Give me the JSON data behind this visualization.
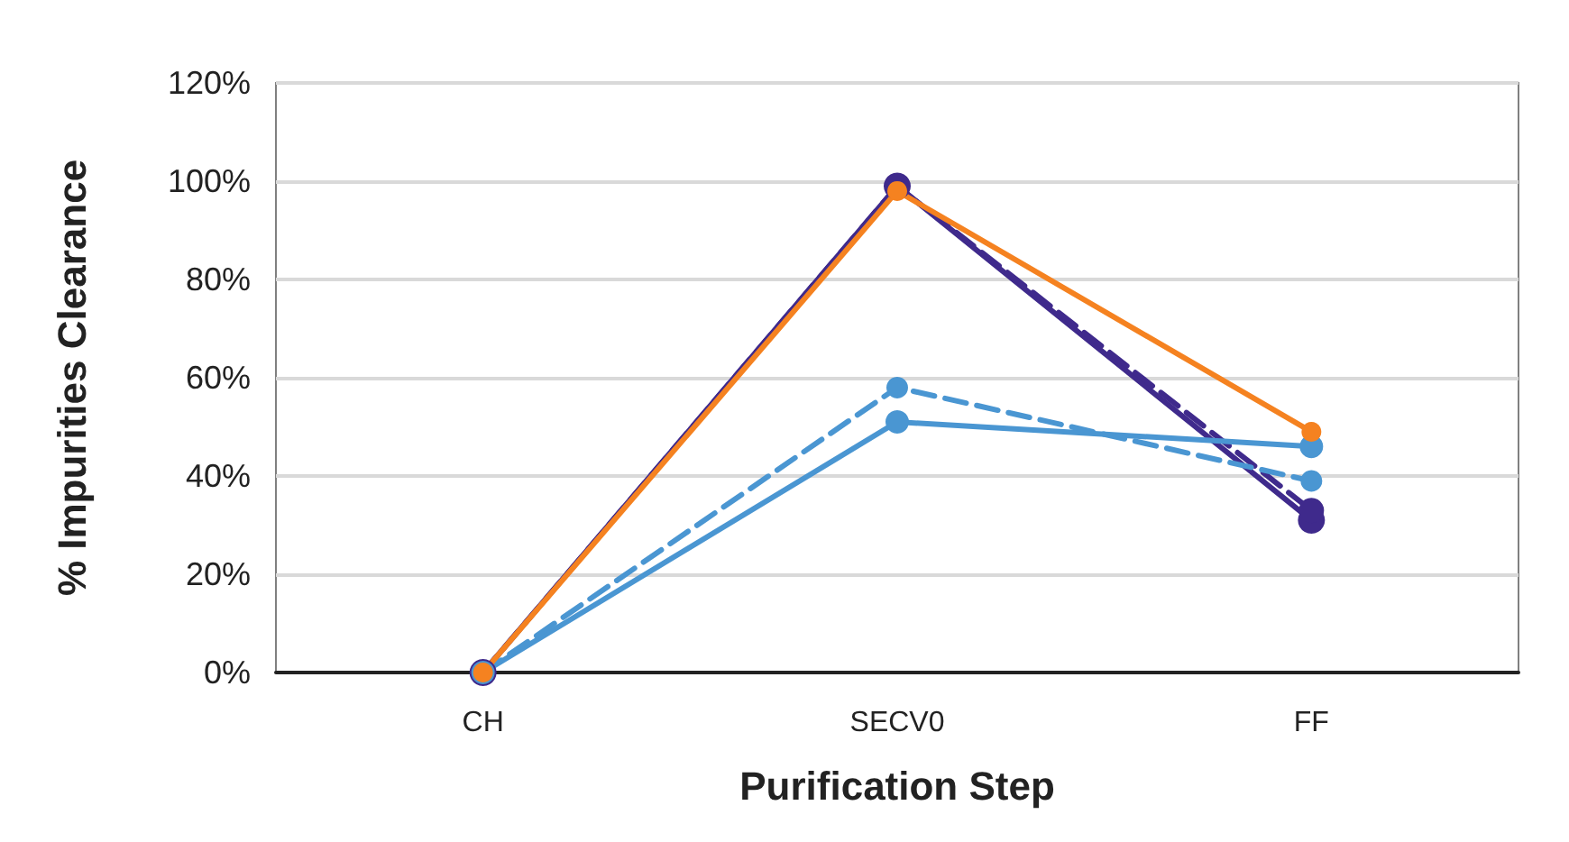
{
  "chart_data": {
    "type": "line",
    "xlabel": "Purification Step",
    "ylabel": "% Impurities Clearance",
    "categories": [
      "CH",
      "SECV0",
      "FF"
    ],
    "series": [
      {
        "color": "#3f2a8c",
        "values": [
          0,
          99,
          31
        ],
        "line_style": "solid"
      },
      {
        "color": "#3f2a8c",
        "values": [
          0,
          99,
          33
        ],
        "line_style": "dashed"
      },
      {
        "color": "#4a96d2",
        "values": [
          0,
          51,
          46
        ],
        "line_style": "solid"
      },
      {
        "color": "#4a96d2",
        "values": [
          0,
          58,
          39
        ],
        "line_style": "dashed"
      },
      {
        "color": "#f58220",
        "values": [
          0,
          98,
          49
        ],
        "line_style": "solid"
      }
    ],
    "ylim": [
      0,
      120
    ],
    "yticks": [
      {
        "value": 0,
        "label": "0%"
      },
      {
        "value": 20,
        "label": "20%"
      },
      {
        "value": 40,
        "label": "40%"
      },
      {
        "value": 60,
        "label": "60%"
      },
      {
        "value": 80,
        "label": "80%"
      },
      {
        "value": 100,
        "label": "100%"
      },
      {
        "value": 120,
        "label": "120%"
      }
    ],
    "grid": "y",
    "marker": "circle"
  }
}
